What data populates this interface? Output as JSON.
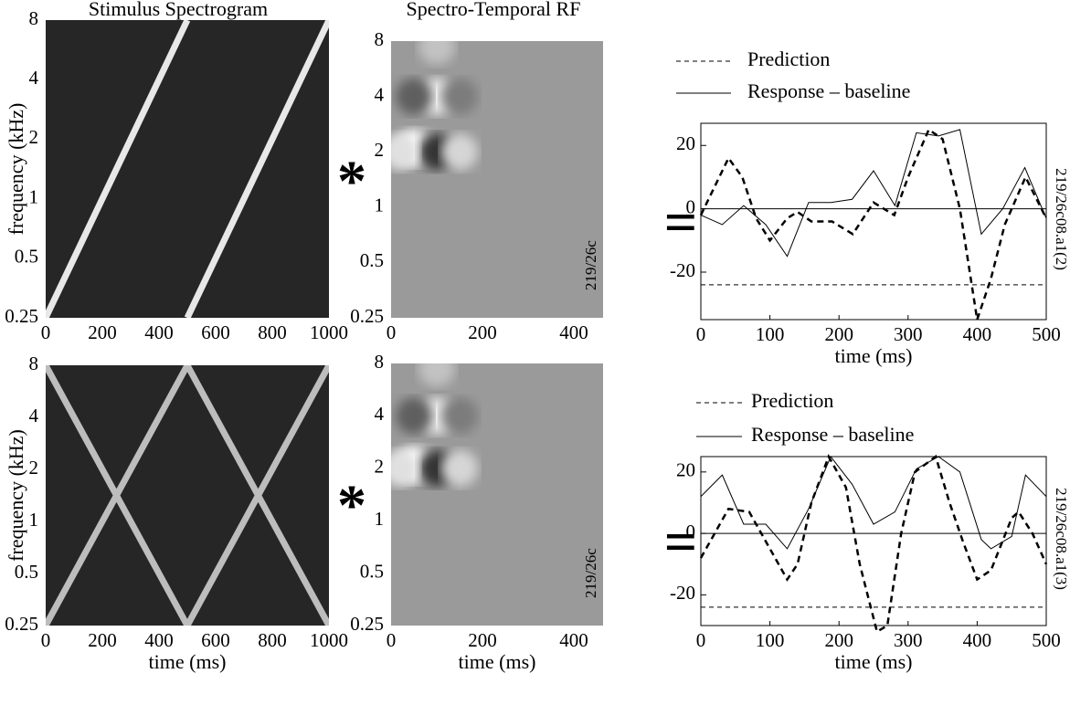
{
  "chart_data": [
    {
      "type": "heatmap",
      "title": "Stimulus Spectrogram",
      "ylabel": "frequency (kHz)",
      "xlim": [
        0,
        1000
      ],
      "xticks": [
        0,
        200,
        400,
        600,
        800,
        1000
      ],
      "ylim": [
        0.25,
        8
      ],
      "yticks": [
        0.25,
        0.5,
        1,
        2,
        4,
        8
      ],
      "yscale": "log",
      "background": "#262626",
      "ridges": [
        {
          "x": [
            0,
            500
          ],
          "y": [
            0.25,
            8
          ]
        },
        {
          "x": [
            500,
            1000
          ],
          "y": [
            0.25,
            8
          ]
        }
      ],
      "ridge_color": "#e8e8e8",
      "operator": "*"
    },
    {
      "type": "heatmap",
      "title": "Spectro-Temporal RF",
      "annotation": "219/26c",
      "xlim": [
        0,
        464
      ],
      "xticks": [
        0,
        200,
        400
      ],
      "ylim": [
        0.25,
        8
      ],
      "yticks": [
        0.25,
        0.5,
        1,
        2,
        4,
        8
      ],
      "yscale": "log",
      "background": "#9a9a9a",
      "features": {
        "x": [
          50,
          100,
          100,
          50,
          100,
          150,
          150,
          20
        ],
        "y": [
          2.1,
          2,
          4,
          4,
          7.5,
          2,
          4,
          2
        ],
        "values": [
          1,
          -1,
          0.8,
          -0.6,
          0.4,
          0.6,
          -0.3,
          0.7
        ]
      },
      "operator": "="
    },
    {
      "type": "line",
      "annotation": "219/26c08.a1(2)",
      "xlabel": "time (ms)",
      "xlim": [
        0,
        500
      ],
      "xticks": [
        0,
        100,
        200,
        300,
        400,
        500
      ],
      "ylim": [
        -35,
        27
      ],
      "yticks": [
        -20,
        0,
        20
      ],
      "hlines": [
        {
          "value": 0,
          "style": "solid"
        },
        {
          "value": -24,
          "style": "dashed"
        }
      ],
      "series": [
        {
          "name": "Prediction",
          "style": "dashed",
          "color": "#000",
          "x": [
            0,
            40,
            60,
            80,
            100,
            125,
            140,
            160,
            190,
            220,
            250,
            280,
            300,
            330,
            350,
            375,
            400,
            420,
            440,
            470,
            500
          ],
          "values": [
            -2,
            16,
            10,
            -3,
            -10,
            -3,
            -1,
            -4,
            -4,
            -8,
            2,
            -2,
            10,
            25,
            22,
            0,
            -35,
            -22,
            -5,
            10,
            -3
          ]
        },
        {
          "name": "Response – baseline",
          "style": "solid",
          "color": "#000",
          "x": [
            0,
            31,
            62,
            94,
            125,
            156,
            188,
            219,
            250,
            281,
            312,
            344,
            375,
            406,
            437,
            469,
            500
          ],
          "values": [
            -2,
            -5,
            1,
            -5,
            -15,
            2,
            2,
            3,
            12,
            1,
            24,
            23,
            25,
            -8,
            0,
            13,
            -3
          ]
        }
      ]
    },
    {
      "type": "heatmap",
      "ylabel": "frequency (kHz)",
      "xlabel": "time (ms)",
      "xlim": [
        0,
        1000
      ],
      "xticks": [
        0,
        200,
        400,
        600,
        800,
        1000
      ],
      "ylim": [
        0.25,
        8
      ],
      "yticks": [
        0.25,
        0.5,
        1,
        2,
        4,
        8
      ],
      "yscale": "log",
      "background": "#262626",
      "ridges": [
        {
          "x": [
            0,
            500,
            1000
          ],
          "y": [
            0.25,
            8,
            0.25
          ]
        },
        {
          "x": [
            0,
            500,
            1000
          ],
          "y": [
            8,
            0.25,
            8
          ]
        }
      ],
      "ridge_color": "#bdbdbd",
      "operator": "*"
    },
    {
      "type": "heatmap",
      "annotation": "219/26c",
      "xlabel": "time (ms)",
      "xlim": [
        0,
        464
      ],
      "xticks": [
        0,
        200,
        400
      ],
      "ylim": [
        0.25,
        8
      ],
      "yticks": [
        0.25,
        0.5,
        1,
        2,
        4,
        8
      ],
      "yscale": "log",
      "background": "#9a9a9a",
      "features": {
        "x": [
          50,
          100,
          100,
          50,
          100,
          150,
          150,
          20
        ],
        "y": [
          2.1,
          2,
          4,
          4,
          7.5,
          2,
          4,
          2
        ],
        "values": [
          1,
          -1,
          0.8,
          -0.6,
          0.4,
          0.6,
          -0.3,
          0.7
        ]
      },
      "operator": "="
    },
    {
      "type": "line",
      "annotation": "219/26c08.a1(3)",
      "xlabel": "time (ms)",
      "xlim": [
        0,
        500
      ],
      "xticks": [
        0,
        100,
        200,
        300,
        400,
        500
      ],
      "ylim": [
        -30,
        25
      ],
      "yticks": [
        -20,
        0,
        20
      ],
      "hlines": [
        {
          "value": 0,
          "style": "solid"
        },
        {
          "value": -24,
          "style": "dashed"
        }
      ],
      "series": [
        {
          "name": "Prediction",
          "style": "dashed",
          "color": "#000",
          "x": [
            0,
            40,
            70,
            100,
            125,
            140,
            160,
            185,
            210,
            230,
            255,
            270,
            290,
            310,
            340,
            360,
            380,
            400,
            420,
            450,
            460,
            480,
            500
          ],
          "values": [
            -8,
            8,
            7,
            -5,
            -15,
            -10,
            10,
            25,
            15,
            -10,
            -32,
            -30,
            0,
            20,
            25,
            10,
            -3,
            -15,
            -12,
            5,
            7,
            0,
            -10
          ]
        },
        {
          "name": "Response – baseline",
          "style": "solid",
          "color": "#000",
          "x": [
            0,
            31,
            62,
            94,
            125,
            156,
            188,
            219,
            250,
            281,
            312,
            344,
            375,
            406,
            420,
            450,
            470,
            500
          ],
          "values": [
            12,
            19,
            3,
            3,
            -5,
            8,
            25,
            16,
            3,
            7,
            21,
            25,
            20,
            -2,
            -5,
            -1,
            19,
            12
          ]
        }
      ]
    }
  ]
}
